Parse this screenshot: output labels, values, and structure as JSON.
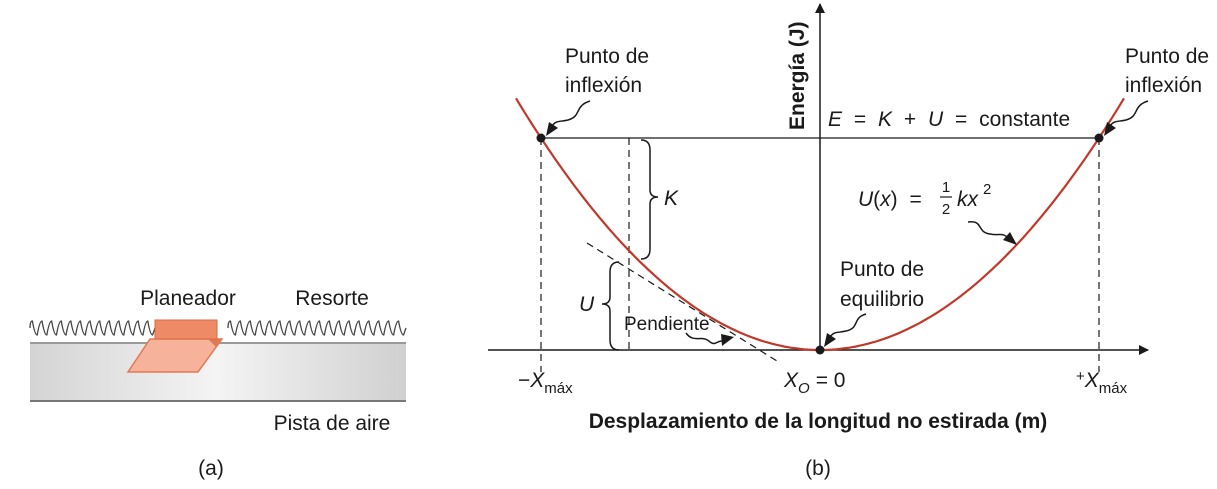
{
  "panel_a": {
    "glider_label": "Planeador",
    "spring_label": "Resorte",
    "track_label": "Pista de aire",
    "caption": "(a)"
  },
  "panel_b": {
    "caption": "(b)",
    "y_axis_label": "Energía (J)",
    "x_axis_label": "Desplazamiento de la longitud no estirada (m)",
    "turning_point_label_line1": "Punto de",
    "turning_point_label_line2": "inflexión",
    "equilibrium_label_line1": "Punto de",
    "equilibrium_label_line2": "equilibrio",
    "slope_label": "Pendiente",
    "energy_line_label": {
      "E": "E",
      "eq1": "=",
      "K": "K",
      "plus": "+",
      "U": "U",
      "eq2": "=",
      "const": "constante"
    },
    "kinetic_label": "K",
    "potential_label": "U",
    "potential_function": {
      "lhs": "U",
      "open": "(",
      "var": "x",
      "close": ")",
      "eq": "=",
      "num": "1",
      "den": "2",
      "k": "kx",
      "exp": "2"
    },
    "tick_neg": {
      "sign": "−",
      "x": "X",
      "sub": "máx"
    },
    "tick_zero": {
      "x": "X",
      "sub": "O",
      "rest": "= 0"
    },
    "tick_pos": {
      "sign": "+",
      "x": "X",
      "sub": "máx"
    },
    "colors": {
      "curve": "#c0392b",
      "glider": "#f0906a",
      "track": "#d8d8d8"
    }
  }
}
